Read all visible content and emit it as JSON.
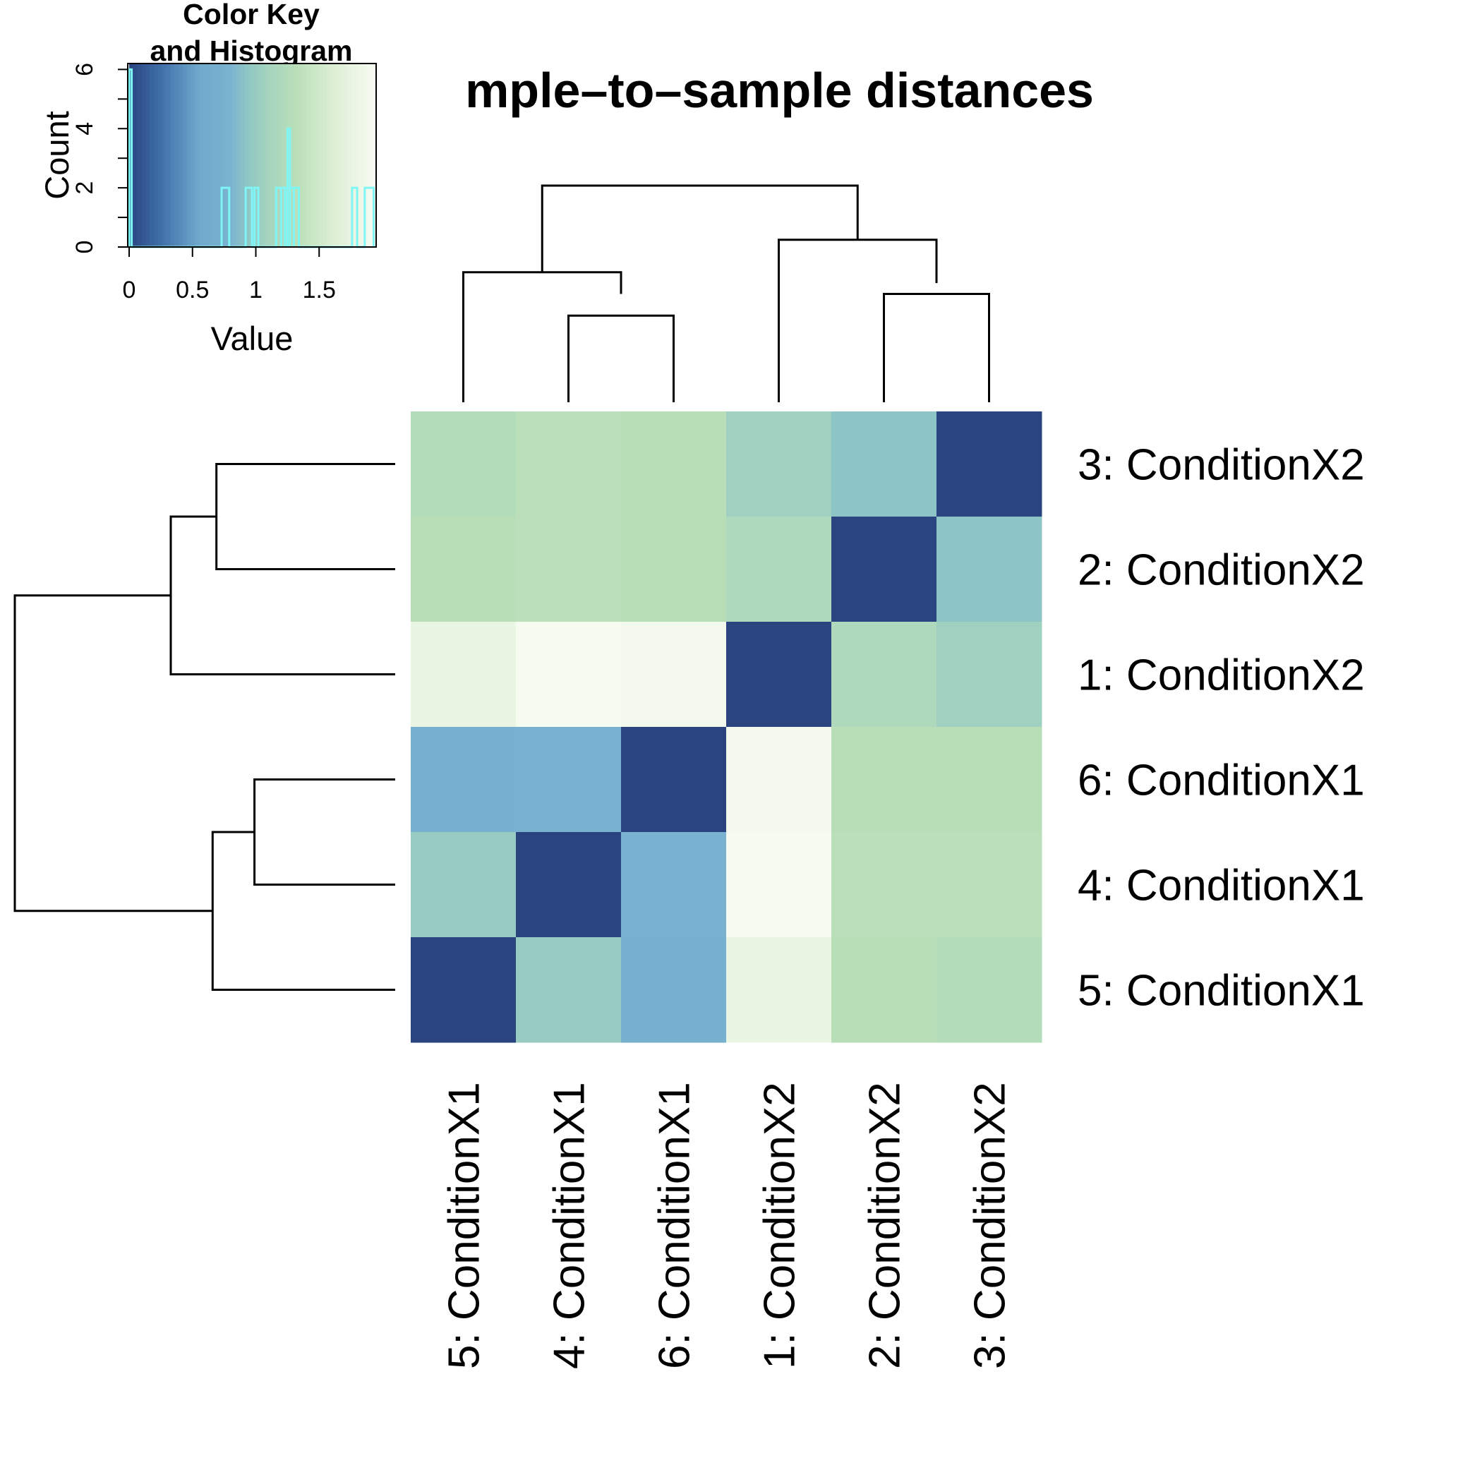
{
  "chart_data": {
    "type": "heatmap",
    "title": "Sample-to-sample distances",
    "visible_title": "mple–to–sample distances",
    "row_labels": [
      "3: ConditionX2",
      "2: ConditionX2",
      "1: ConditionX2",
      "6: ConditionX1",
      "4: ConditionX1",
      "5: ConditionX1"
    ],
    "col_labels": [
      "5: ConditionX1",
      "4: ConditionX1",
      "6: ConditionX1",
      "1: ConditionX2",
      "2: ConditionX2",
      "3: ConditionX2"
    ],
    "values": [
      [
        1.25,
        1.32,
        1.3,
        1.05,
        0.92,
        0.0
      ],
      [
        1.3,
        1.32,
        1.3,
        1.2,
        0.0,
        0.92
      ],
      [
        1.78,
        1.92,
        1.88,
        0.0,
        1.2,
        1.05
      ],
      [
        0.75,
        0.78,
        0.0,
        1.88,
        1.3,
        1.3
      ],
      [
        1.0,
        0.0,
        0.78,
        1.92,
        1.32,
        1.32
      ],
      [
        0.0,
        1.0,
        0.75,
        1.78,
        1.3,
        1.25
      ]
    ],
    "color_scale": {
      "range": [
        0,
        1.95
      ],
      "stops": [
        {
          "v": 0.0,
          "color": "#2a4480"
        },
        {
          "v": 0.25,
          "color": "#3f6fa9"
        },
        {
          "v": 0.55,
          "color": "#6fa9cc"
        },
        {
          "v": 0.8,
          "color": "#7ab3d0"
        },
        {
          "v": 0.95,
          "color": "#92c8c3"
        },
        {
          "v": 1.1,
          "color": "#a5d4bf"
        },
        {
          "v": 1.3,
          "color": "#b8deb8"
        },
        {
          "v": 1.6,
          "color": "#dbeed3"
        },
        {
          "v": 1.95,
          "color": "#f9fcf3"
        }
      ]
    },
    "color_key": {
      "title_line1": "Color Key",
      "title_line2": "and Histogram",
      "xlabel": "Value",
      "ylabel": "Count",
      "x_ticks": [
        "0",
        "0.5",
        "1",
        "1.5"
      ],
      "x_tick_values": [
        0,
        0.5,
        1,
        1.5
      ],
      "y_ticks": [
        "0",
        "2",
        "4",
        "6"
      ],
      "y_tick_values": [
        0,
        2,
        4,
        6
      ],
      "xlim": [
        0,
        1.95
      ],
      "ylim": [
        0,
        6.2
      ],
      "histogram_color": "#7ff5f5",
      "histogram": [
        {
          "x0": 0.0,
          "x1": 0.02,
          "count": 6
        },
        {
          "x0": 0.73,
          "x1": 0.79,
          "count": 2
        },
        {
          "x0": 0.92,
          "x1": 0.97,
          "count": 2
        },
        {
          "x0": 0.99,
          "x1": 1.02,
          "count": 2
        },
        {
          "x0": 1.16,
          "x1": 1.2,
          "count": 2
        },
        {
          "x0": 1.2,
          "x1": 1.23,
          "count": 2
        },
        {
          "x0": 1.23,
          "x1": 1.25,
          "count": 2
        },
        {
          "x0": 1.25,
          "x1": 1.27,
          "count": 4
        },
        {
          "x0": 1.27,
          "x1": 1.3,
          "count": 2
        },
        {
          "x0": 1.3,
          "x1": 1.34,
          "count": 2
        },
        {
          "x0": 1.76,
          "x1": 1.8,
          "count": 2
        },
        {
          "x0": 1.86,
          "x1": 1.93,
          "count": 2
        }
      ]
    },
    "col_dendrogram": [
      {
        "left": 0,
        "right": [
          1,
          2
        ],
        "lh": 0,
        "rh": 0.5,
        "h": 0.6
      },
      {
        "left": 1,
        "right": 2,
        "lh": 0,
        "rh": 0,
        "h": 0.4
      },
      {
        "left": 3,
        "right": [
          4,
          5
        ],
        "lh": 0,
        "rh": 0.55,
        "h": 0.75
      },
      {
        "left": 4,
        "right": 5,
        "lh": 0,
        "rh": 0,
        "h": 0.5
      },
      {
        "left": [
          0,
          1,
          2
        ],
        "right": [
          3,
          4,
          5
        ],
        "lh": 0.6,
        "rh": 0.75,
        "h": 1.0
      }
    ],
    "row_dendrogram": [
      {
        "a": 0,
        "b": 1,
        "ah": 0,
        "bh": 0,
        "h": 0.47
      },
      {
        "a": [
          0,
          1
        ],
        "b": 2,
        "ah": 0.47,
        "bh": 0,
        "h": 0.59
      },
      {
        "a": 3,
        "b": 4,
        "ah": 0,
        "bh": 0,
        "h": 0.37
      },
      {
        "a": [
          3,
          4
        ],
        "b": 5,
        "ah": 0.37,
        "bh": 0,
        "h": 0.48
      },
      {
        "a": [
          0,
          1,
          2
        ],
        "b": [
          3,
          4,
          5
        ],
        "ah": 0.59,
        "bh": 0.48,
        "h": 1.0
      }
    ]
  }
}
